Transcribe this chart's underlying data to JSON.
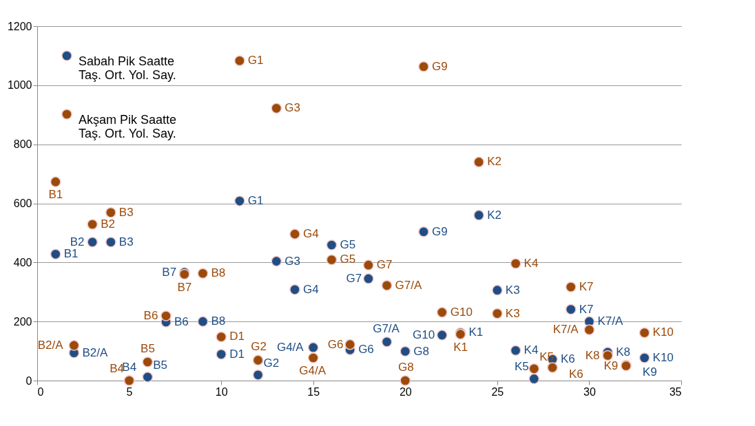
{
  "chart_data": {
    "type": "scatter",
    "xlim": [
      0,
      35
    ],
    "xticks": [
      0,
      5,
      10,
      15,
      20,
      25,
      30,
      35
    ],
    "ylim": [
      0,
      1200
    ],
    "yticks": [
      0,
      200,
      400,
      600,
      800,
      1000,
      1200
    ],
    "grid": "y",
    "legend": "top left",
    "marker": "circle",
    "x": [
      1,
      2,
      3,
      4,
      5,
      6,
      7,
      8,
      9,
      10,
      11,
      12,
      13,
      14,
      15,
      16,
      17,
      18,
      19,
      20,
      21,
      22,
      23,
      24,
      25,
      26,
      27,
      28,
      29,
      30,
      31,
      32,
      33
    ],
    "series": [
      {
        "name": "Sabah Pik Saatte Taş. Ort. Yol. Say.",
        "color": "#1f4e85",
        "values": [
          428,
          94,
          469,
          469,
          0,
          12,
          198,
          366,
          200,
          89,
          608,
          19,
          404,
          308,
          112,
          459,
          104,
          345,
          131,
          99,
          504,
          154,
          162,
          560,
          306,
          102,
          6,
          72,
          241,
          200,
          96,
          52,
          77
        ],
        "value_labels": [
          "B1",
          "B2/A",
          "B2",
          "B3",
          "B4",
          "B5",
          "B6",
          "B7",
          "B8",
          "D1",
          "G1",
          "G2",
          "G3",
          "G4",
          "G4/A",
          "G5",
          "G6",
          "G7",
          "G7/A",
          "G8",
          "G9",
          "G10",
          "K1",
          "K2",
          "K3",
          "K4",
          "K5",
          "K6",
          "K7",
          "K7/A",
          "K8",
          "K9",
          "K10"
        ]
      },
      {
        "name": "Akşam Pik Saatte Taş. Ort. Yol. Say.",
        "color": "#9c4a0a",
        "values": [
          673,
          119,
          529,
          569,
          0,
          63,
          219,
          360,
          363,
          148,
          1083,
          69,
          922,
          496,
          77,
          409,
          122,
          391,
          322,
          0,
          1063,
          231,
          157,
          740,
          227,
          396,
          40,
          44,
          317,
          172,
          85,
          50,
          162
        ],
        "value_labels": [
          "B1",
          "B2/A",
          "B2",
          "B3",
          "B4",
          "B5",
          "B6",
          "B7",
          "B8",
          "D1",
          "G1",
          "G2",
          "G3",
          "G4",
          "G4/A",
          "G5",
          "G6",
          "G7",
          "G7/A",
          "G8",
          "G9",
          "G10",
          "K1",
          "K2",
          "K3",
          "K4",
          "K5",
          "K6",
          "K7",
          "K7/A",
          "K8",
          "K9",
          "K10"
        ]
      }
    ]
  }
}
